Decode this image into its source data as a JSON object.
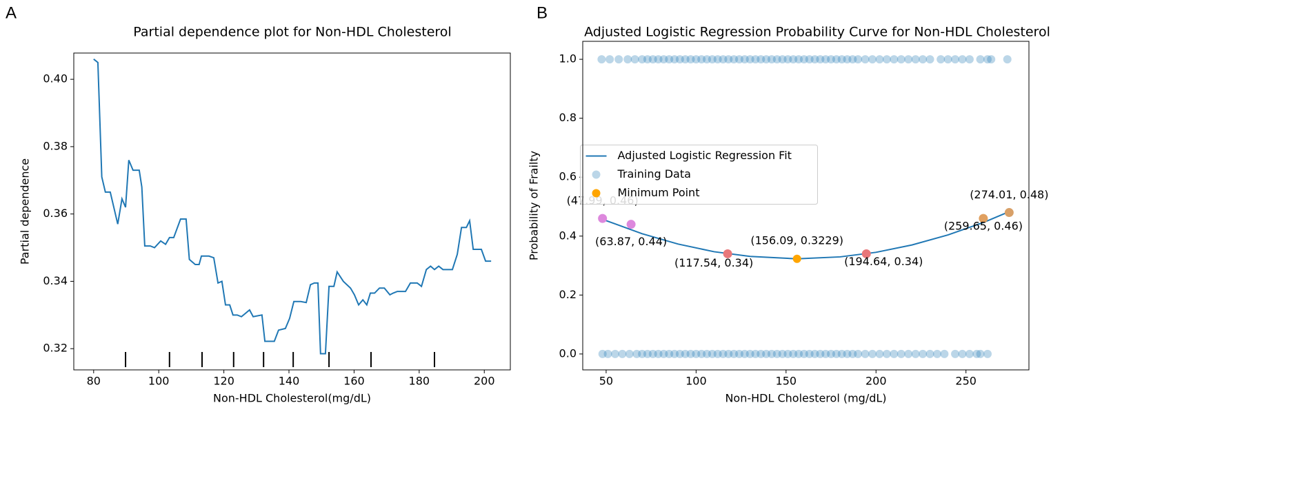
{
  "chart_data": [
    {
      "type": "line",
      "panel": "A",
      "title": "Partial dependence plot for Non-HDL Cholesterol",
      "xlabel": "Non-HDL Cholesterol(mg/dL)",
      "ylabel": "Partial dependence",
      "xlim": [
        73.9,
        208
      ],
      "ylim": [
        0.3137,
        0.4078
      ],
      "xticks": [
        80,
        100,
        120,
        140,
        160,
        180,
        200
      ],
      "yticks": [
        0.32,
        0.34,
        0.36,
        0.38,
        {
          "value": 0.4,
          "label": "0.40"
        }
      ],
      "deciles": [
        89.8,
        103.3,
        113.3,
        123.0,
        132.2,
        141.3,
        152.3,
        165.2,
        184.7
      ],
      "series": [
        {
          "color": "#1f77b4",
          "x": [
            80,
            81.3,
            82.5,
            83.6,
            85.1,
            87.4,
            88.7,
            89.8,
            90.8,
            92.1,
            94.0,
            94.8,
            95.7,
            97.4,
            98.7,
            100.6,
            102.1,
            103.3,
            104.6,
            106.7,
            108.4,
            109.4,
            111.2,
            112.4,
            113.1,
            115.4,
            116.9,
            118.2,
            119.4,
            120.5,
            121.8,
            122.8,
            124.1,
            125.4,
            127.9,
            129.0,
            131.7,
            132.6,
            135.5,
            136.8,
            138.9,
            140.2,
            141.5,
            143.6,
            145.3,
            146.6,
            147.8,
            148.9,
            149.7,
            151.2,
            152.3,
            153.8,
            154.8,
            156.7,
            158.9,
            160.1,
            161.4,
            162.7,
            163.9,
            165.0,
            166.3,
            167.8,
            169.3,
            171.0,
            172.0,
            173.3,
            175.8,
            177.3,
            179.4,
            180.7,
            182.2,
            183.5,
            184.7,
            186.0,
            187.3,
            190.2,
            191.7,
            193.0,
            194.5,
            195.5,
            196.6,
            199.1,
            200.4,
            202.1
          ],
          "values": [
            0.406,
            0.405,
            0.371,
            0.3665,
            0.3665,
            0.357,
            0.3645,
            0.362,
            0.376,
            0.373,
            0.373,
            0.368,
            0.3505,
            0.3505,
            0.35,
            0.352,
            0.351,
            0.353,
            0.353,
            0.3585,
            0.3585,
            0.3465,
            0.345,
            0.345,
            0.3475,
            0.3475,
            0.347,
            0.3395,
            0.34,
            0.333,
            0.333,
            0.33,
            0.33,
            0.3295,
            0.3315,
            0.3295,
            0.33,
            0.3222,
            0.3222,
            0.3255,
            0.326,
            0.329,
            0.334,
            0.334,
            0.3337,
            0.339,
            0.3395,
            0.3395,
            0.3185,
            0.3185,
            0.3385,
            0.3385,
            0.3428,
            0.34,
            0.338,
            0.336,
            0.333,
            0.3345,
            0.333,
            0.3365,
            0.3365,
            0.338,
            0.338,
            0.336,
            0.3365,
            0.337,
            0.337,
            0.3395,
            0.3395,
            0.3385,
            0.3435,
            0.3445,
            0.3435,
            0.3445,
            0.3435,
            0.3435,
            0.348,
            0.356,
            0.356,
            0.358,
            0.3495,
            0.3495,
            0.346,
            0.346
          ]
        }
      ]
    },
    {
      "type": "scatter",
      "panel": "B",
      "title": "Adjusted Logistic Regression Probability Curve for Non-HDL Cholesterol",
      "xlabel": "Non-HDL Cholesterol (mg/dL)",
      "ylabel": "Probability of Frailty",
      "xlim": [
        37,
        285
      ],
      "ylim": [
        -0.054,
        1.061
      ],
      "xticks": [
        50,
        100,
        150,
        200,
        250
      ],
      "yticks": [
        {
          "value": 0,
          "label": "0.0"
        },
        0.2,
        0.4,
        0.6,
        0.8,
        {
          "value": 1,
          "label": "1.0"
        }
      ],
      "legend": "center",
      "series": [
        {
          "name": "Adjusted Logistic Regression Fit",
          "kind": "line",
          "color": "#1f77b4",
          "x": [
            48,
            70,
            90,
            110,
            130,
            156.09,
            180,
            200,
            220,
            240,
            260,
            274
          ],
          "values": [
            0.457,
            0.408,
            0.373,
            0.347,
            0.331,
            0.3229,
            0.3295,
            0.345,
            0.37,
            0.404,
            0.447,
            0.483
          ]
        },
        {
          "name": "Training Data",
          "kind": "points",
          "color": "#1f77b4",
          "opacity": 0.3,
          "x": [
            47.5,
            52,
            57,
            62,
            66,
            70,
            73,
            76,
            79,
            82,
            85,
            88,
            91,
            94,
            97,
            100,
            103,
            106,
            109,
            112,
            115,
            118,
            121,
            124,
            127,
            130,
            133,
            136,
            139,
            142,
            145,
            148,
            151,
            154,
            157,
            160,
            163,
            166,
            169,
            172,
            175,
            178,
            181,
            184,
            187,
            190,
            194,
            198,
            202,
            206,
            210,
            214,
            218,
            222,
            226,
            230,
            236,
            240,
            244,
            248,
            252,
            258,
            262,
            264,
            273,
            48,
            51,
            55,
            59,
            63,
            67,
            70,
            73,
            76,
            79,
            82,
            85,
            88,
            91,
            94,
            97,
            100,
            103,
            106,
            109,
            112,
            115,
            118,
            121,
            124,
            127,
            130,
            133,
            136,
            139,
            142,
            145,
            148,
            151,
            154,
            157,
            160,
            163,
            166,
            169,
            172,
            175,
            178,
            181,
            184,
            187,
            190,
            194,
            198,
            202,
            206,
            210,
            214,
            218,
            222,
            226,
            230,
            234,
            238,
            244,
            248,
            252,
            256,
            258,
            262
          ],
          "values": [
            1,
            1,
            1,
            1,
            1,
            1,
            1,
            1,
            1,
            1,
            1,
            1,
            1,
            1,
            1,
            1,
            1,
            1,
            1,
            1,
            1,
            1,
            1,
            1,
            1,
            1,
            1,
            1,
            1,
            1,
            1,
            1,
            1,
            1,
            1,
            1,
            1,
            1,
            1,
            1,
            1,
            1,
            1,
            1,
            1,
            1,
            1,
            1,
            1,
            1,
            1,
            1,
            1,
            1,
            1,
            1,
            1,
            1,
            1,
            1,
            1,
            1,
            1,
            1,
            1,
            0,
            0,
            0,
            0,
            0,
            0,
            0,
            0,
            0,
            0,
            0,
            0,
            0,
            0,
            0,
            0,
            0,
            0,
            0,
            0,
            0,
            0,
            0,
            0,
            0,
            0,
            0,
            0,
            0,
            0,
            0,
            0,
            0,
            0,
            0,
            0,
            0,
            0,
            0,
            0,
            0,
            0,
            0,
            0,
            0,
            0,
            0,
            0,
            0,
            0,
            0,
            0,
            0,
            0,
            0,
            0,
            0,
            0,
            0,
            0,
            0,
            0,
            0,
            0,
            0
          ]
        },
        {
          "name": "Minimum Point",
          "kind": "points",
          "color": "#ffa500",
          "opacity": 1,
          "x": [
            156.09
          ],
          "values": [
            0.3229
          ],
          "value_labels": [
            "(156.09, 0.3229)"
          ]
        }
      ],
      "annotations": [
        {
          "x": 47.99,
          "y": 0.46,
          "label": "(47.99, 0.46)",
          "color": "#dd88dd"
        },
        {
          "x": 63.87,
          "y": 0.44,
          "label": "(63.87, 0.44)",
          "color": "#dd88dd"
        },
        {
          "x": 117.54,
          "y": 0.34,
          "label": "(117.54, 0.34)",
          "color": "#e8777a"
        },
        {
          "x": 194.64,
          "y": 0.34,
          "label": "(194.64, 0.34)",
          "color": "#e8777a"
        },
        {
          "x": 259.65,
          "y": 0.46,
          "label": "(259.65, 0.46)",
          "color": "#e0a060"
        },
        {
          "x": 274.01,
          "y": 0.48,
          "label": "(274.01, 0.48)",
          "color": "#d8a068"
        }
      ]
    }
  ]
}
